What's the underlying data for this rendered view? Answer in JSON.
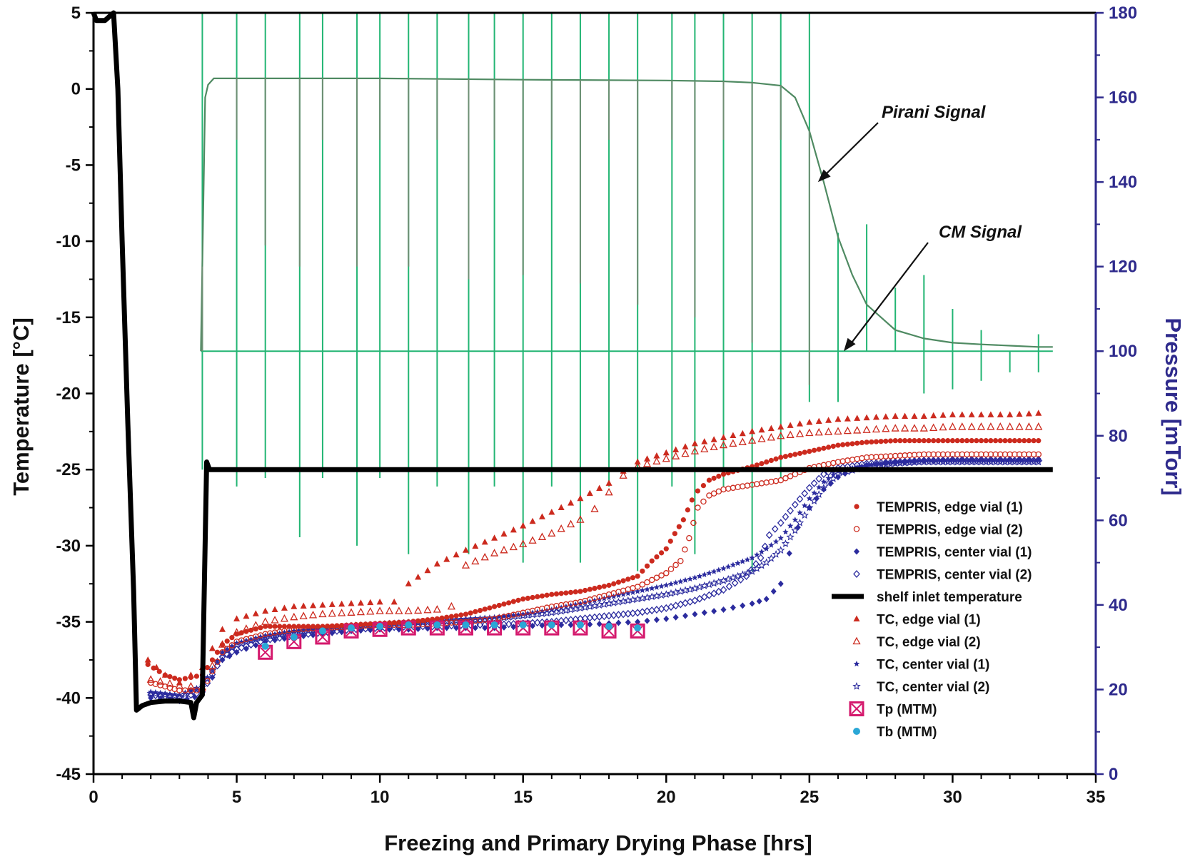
{
  "chart_data": {
    "type": "scatter",
    "title": "",
    "xlabel": "Freezing and Primary Drying Phase [hrs]",
    "ylabel_left": "Temperature [°C]",
    "ylabel_right": "Pressure [mTorr]",
    "xlim": [
      0,
      35
    ],
    "ylim_left": [
      -45,
      5
    ],
    "ylim_right": [
      0,
      180
    ],
    "xticks": [
      "0",
      "5",
      "10",
      "15",
      "20",
      "25",
      "30",
      "35"
    ],
    "yticks_left": [
      "5",
      "0",
      "-5",
      "-10",
      "-15",
      "-20",
      "-25",
      "-30",
      "-35",
      "-40",
      "-45"
    ],
    "yticks_right": [
      "180",
      "160",
      "140",
      "120",
      "100",
      "80",
      "60",
      "40",
      "20",
      "0"
    ],
    "legend_position": "right",
    "annotations": [
      {
        "text": "Pirani Signal",
        "x": 25.3,
        "y_pressure": 140
      },
      {
        "text": "CM Signal",
        "x": 26.2,
        "y_pressure": 100
      }
    ],
    "colors": {
      "axis_left": "#000000",
      "axis_right": "#2e2a8c",
      "pirani": "#4f8a62",
      "cm": "#22b573",
      "red": "#cc2a1e",
      "blue": "#2b2b9e",
      "shelf": "#000000",
      "tp": "#d4186c",
      "tb": "#2aa7d6"
    },
    "series": [
      {
        "name": "Pirani Signal",
        "axis": "right",
        "style": "line",
        "color": "#4f8a62",
        "x": [
          3.75,
          3.9,
          4.0,
          4.2,
          5,
          10,
          15,
          20,
          22,
          23,
          24,
          24.5,
          25,
          25.5,
          26,
          26.5,
          27,
          28,
          29,
          30,
          31,
          32,
          33,
          33.5
        ],
        "y": [
          100,
          160,
          163,
          164.5,
          164.5,
          164.5,
          164.2,
          164,
          163.8,
          163.5,
          162.8,
          160,
          152,
          140,
          127,
          118,
          111,
          105,
          103,
          102,
          101.6,
          101.3,
          101,
          101
        ],
        "spike_x": [
          3.8,
          5.0,
          6.0,
          7.2,
          8.0,
          9.2,
          10.0,
          11.0,
          12.0,
          13.1,
          14.0,
          15.0,
          16.0,
          17.0,
          18.0,
          19.0,
          20.2,
          21.0,
          22.0,
          23.0,
          24.0,
          25.0
        ],
        "spike_low": [
          100,
          150,
          125,
          120,
          150,
          120,
          150,
          120,
          150,
          117,
          150,
          118,
          150,
          116,
          150,
          111,
          150,
          108,
          150,
          102,
          150,
          92
        ]
      },
      {
        "name": "CM Signal",
        "axis": "right",
        "style": "line",
        "color": "#22b573",
        "x": [
          3.75,
          33.5
        ],
        "y": [
          100,
          100
        ],
        "spike_x": [
          3.8,
          5.0,
          6.0,
          7.2,
          8.0,
          9.2,
          10.0,
          11.0,
          12.0,
          13.1,
          14.0,
          15.0,
          16.0,
          17.0,
          18.0,
          19.0,
          20.2,
          21.0,
          22.0,
          23.0,
          24.0,
          25.0,
          26.0,
          27.0,
          28.0,
          29.0,
          30.0,
          31.0,
          32.0,
          33.0
        ],
        "spike_high": [
          180,
          180,
          180,
          180,
          180,
          180,
          180,
          180,
          180,
          180,
          180,
          180,
          180,
          180,
          180,
          180,
          180,
          180,
          180,
          180,
          180,
          180,
          128,
          130,
          115,
          118,
          110,
          105,
          100,
          104
        ],
        "spike_low": [
          72,
          68,
          70,
          56,
          70,
          54,
          70,
          52,
          68,
          52,
          68,
          50,
          68,
          50,
          68,
          48,
          68,
          52,
          68,
          48,
          70,
          88,
          88,
          100,
          100,
          90,
          91,
          93,
          95,
          95
        ]
      },
      {
        "name": "shelf inlet temperature",
        "axis": "left",
        "style": "thick-line",
        "color": "#000000",
        "x": [
          0.0,
          0.1,
          0.4,
          0.7,
          0.85,
          1.0,
          1.2,
          1.4,
          1.5,
          1.7,
          2.0,
          2.5,
          3.0,
          3.4,
          3.5,
          3.6,
          3.8,
          3.95,
          4.05,
          4.2,
          5,
          10,
          15,
          20,
          25,
          30,
          33.5
        ],
        "y": [
          5,
          4.5,
          4.5,
          5,
          0,
          -10,
          -22,
          -33,
          -40.8,
          -40.5,
          -40.3,
          -40.2,
          -40.2,
          -40.3,
          -41.3,
          -40.3,
          -39.8,
          -24.5,
          -25,
          -25,
          -25,
          -25,
          -25,
          -25,
          -25,
          -25,
          -25
        ]
      },
      {
        "name": "TEMPRIS, edge vial (1)",
        "axis": "left",
        "style": "filled-circle",
        "color": "#cc2a1e",
        "x": [
          1.9,
          2.5,
          3.0,
          3.8,
          4.5,
          5,
          6,
          7,
          8,
          9,
          10,
          11,
          12,
          13,
          14,
          15,
          16,
          17,
          18,
          19,
          19.5,
          20,
          20.3,
          20.6,
          20.9,
          21.1,
          21.5,
          22,
          23,
          24,
          25,
          26,
          27,
          28,
          29,
          30,
          31,
          32,
          33
        ],
        "y": [
          -37.8,
          -38.5,
          -38.8,
          -38.5,
          -36.5,
          -35.8,
          -35.3,
          -35.3,
          -35.3,
          -35.2,
          -35.1,
          -35,
          -34.8,
          -34.5,
          -34,
          -33.5,
          -33.2,
          -33,
          -32.6,
          -32,
          -31,
          -30.2,
          -29.2,
          -28.3,
          -27,
          -26.4,
          -25.7,
          -25.3,
          -24.8,
          -24.2,
          -23.8,
          -23.4,
          -23.2,
          -23.1,
          -23.1,
          -23.1,
          -23.1,
          -23.1,
          -23.1
        ]
      },
      {
        "name": "TEMPRIS, edge vial (2)",
        "axis": "left",
        "style": "open-circle",
        "color": "#cc2a1e",
        "x": [
          2,
          3,
          3.8,
          4.5,
          5,
          6,
          7,
          8,
          9,
          10,
          11,
          12,
          13,
          14,
          15,
          16,
          17,
          18,
          19,
          20,
          20.5,
          20.8,
          21.1,
          21.5,
          22,
          23,
          24,
          24.5,
          25,
          26,
          27,
          28,
          29,
          30,
          31,
          32,
          33
        ],
        "y": [
          -39,
          -39.5,
          -39.5,
          -37,
          -36.3,
          -35.8,
          -35.5,
          -35.4,
          -35.3,
          -35.2,
          -35.2,
          -35.1,
          -35,
          -34.8,
          -34.4,
          -34,
          -33.7,
          -33.2,
          -32.7,
          -31.8,
          -31,
          -29.5,
          -27.5,
          -26.7,
          -26.3,
          -26,
          -25.7,
          -25.3,
          -24.9,
          -24.5,
          -24.2,
          -24.1,
          -24,
          -24,
          -24,
          -24,
          -24
        ]
      },
      {
        "name": "TEMPRIS, center vial (1)",
        "axis": "left",
        "style": "filled-diamond",
        "color": "#2b2b9e",
        "x": [
          2,
          3,
          3.8,
          4.5,
          5,
          6,
          7,
          8,
          9,
          10,
          11,
          12,
          13,
          14,
          15,
          16,
          17,
          18,
          19,
          20,
          21,
          22,
          23,
          23.5,
          24,
          24.3,
          24.6,
          25,
          25.5,
          26,
          26.5,
          27,
          28,
          29,
          30,
          31,
          32,
          33
        ],
        "y": [
          -40,
          -40.2,
          -39.8,
          -37.5,
          -37,
          -36.3,
          -36,
          -35.8,
          -35.6,
          -35.5,
          -35.5,
          -35.4,
          -35.4,
          -35.4,
          -35.3,
          -35.2,
          -35.2,
          -35.1,
          -35,
          -34.8,
          -34.5,
          -34.2,
          -33.8,
          -33.5,
          -32.5,
          -30.5,
          -28.8,
          -27.5,
          -26.3,
          -25.5,
          -25,
          -24.7,
          -24.5,
          -24.4,
          -24.3,
          -24.3,
          -24.3,
          -24.3
        ]
      },
      {
        "name": "TEMPRIS, center vial (2)",
        "axis": "left",
        "style": "open-diamond",
        "color": "#2b2b9e",
        "x": [
          2,
          3,
          3.8,
          4.5,
          5,
          6,
          7,
          8,
          9,
          10,
          11,
          12,
          13,
          14,
          15,
          16,
          17,
          18,
          19,
          20,
          21,
          22,
          22.8,
          23.3,
          23.6,
          24,
          24.5,
          25,
          25.5,
          26,
          27,
          28,
          29,
          30,
          31,
          32,
          33
        ],
        "y": [
          -39.8,
          -40,
          -39.6,
          -37.3,
          -36.8,
          -36.2,
          -35.9,
          -35.7,
          -35.5,
          -35.4,
          -35.3,
          -35.3,
          -35.2,
          -35.2,
          -35.1,
          -35,
          -34.8,
          -34.6,
          -34.4,
          -34.1,
          -33.6,
          -32.9,
          -32,
          -30.8,
          -29.3,
          -28.5,
          -27.3,
          -26.2,
          -25.3,
          -24.9,
          -24.6,
          -24.5,
          -24.4,
          -24.4,
          -24.4,
          -24.4,
          -24.4
        ]
      },
      {
        "name": "TC, edge vial (1)",
        "axis": "left",
        "style": "filled-triangle",
        "color": "#cc2a1e",
        "x": [
          1.9,
          2.5,
          3,
          3.8,
          4.5,
          5,
          6,
          7,
          8,
          9,
          10,
          10.5,
          11,
          12,
          13,
          14,
          15,
          16,
          17,
          18,
          18.5,
          19,
          20,
          21,
          22,
          23,
          24,
          25,
          26,
          27,
          28,
          29,
          30,
          31,
          32,
          33
        ],
        "y": [
          -37.5,
          -38.5,
          -39,
          -38,
          -35.5,
          -34.8,
          -34.3,
          -34,
          -33.9,
          -33.8,
          -33.7,
          -33.7,
          -32.5,
          -31.2,
          -30.3,
          -29.5,
          -28.7,
          -27.8,
          -26.9,
          -25.9,
          -25.1,
          -24.5,
          -23.9,
          -23.3,
          -22.9,
          -22.5,
          -22.2,
          -21.9,
          -21.7,
          -21.6,
          -21.5,
          -21.5,
          -21.4,
          -21.4,
          -21.4,
          -21.3
        ]
      },
      {
        "name": "TC, edge vial (2)",
        "axis": "left",
        "style": "open-triangle",
        "color": "#cc2a1e",
        "x": [
          2,
          3,
          3.8,
          4.5,
          5,
          6,
          7,
          8,
          9,
          10,
          11,
          12,
          12.5,
          13,
          14,
          15,
          16,
          17,
          17.5,
          18,
          18.5,
          19,
          20,
          21,
          22,
          23,
          24,
          25,
          26,
          27,
          28,
          29,
          30,
          31,
          32,
          33
        ],
        "y": [
          -38.8,
          -39.2,
          -39.3,
          -36.5,
          -35.7,
          -35,
          -34.7,
          -34.5,
          -34.4,
          -34.3,
          -34.3,
          -34.2,
          -34,
          -31.3,
          -30.5,
          -29.9,
          -29.2,
          -28.3,
          -27.6,
          -26.5,
          -25.4,
          -24.8,
          -24.3,
          -23.8,
          -23.4,
          -23.1,
          -22.8,
          -22.6,
          -22.5,
          -22.4,
          -22.3,
          -22.3,
          -22.2,
          -22.2,
          -22.2,
          -22.2
        ]
      },
      {
        "name": "TC, center vial (1)",
        "axis": "left",
        "style": "star",
        "color": "#2b2b9e",
        "x": [
          2,
          3,
          3.8,
          4.5,
          5,
          6,
          7,
          8,
          9,
          10,
          11,
          12,
          13,
          14,
          15,
          16,
          17,
          18,
          19,
          20,
          21,
          22,
          23,
          23.5,
          24,
          24.5,
          25,
          25.5,
          26,
          27,
          28,
          29,
          30,
          31,
          32,
          33
        ],
        "y": [
          -39.6,
          -39.8,
          -39.2,
          -37,
          -36.4,
          -35.9,
          -35.6,
          -35.4,
          -35.2,
          -35.1,
          -35,
          -34.9,
          -34.8,
          -34.7,
          -34.5,
          -34.2,
          -33.8,
          -33.4,
          -33,
          -32.6,
          -32.1,
          -31.5,
          -30.8,
          -30.2,
          -29.5,
          -28.3,
          -26.9,
          -25.8,
          -25.1,
          -24.7,
          -24.5,
          -24.4,
          -24.4,
          -24.4,
          -24.4,
          -24.4
        ]
      },
      {
        "name": "TC, center vial (2)",
        "axis": "left",
        "style": "open-star",
        "color": "#2b2b9e",
        "x": [
          2,
          3,
          3.8,
          4.5,
          5,
          6,
          7,
          8,
          9,
          10,
          11,
          12,
          13,
          14,
          15,
          16,
          17,
          18,
          19,
          20,
          21,
          22,
          23,
          23.5,
          24,
          24.5,
          25,
          25.5,
          26,
          27,
          28,
          29,
          30,
          31,
          32,
          33
        ],
        "y": [
          -39.7,
          -39.9,
          -39.3,
          -37.1,
          -36.5,
          -36,
          -35.7,
          -35.5,
          -35.3,
          -35.2,
          -35.1,
          -35,
          -34.9,
          -34.8,
          -34.6,
          -34.4,
          -34.1,
          -33.8,
          -33.5,
          -33.2,
          -32.8,
          -32.3,
          -31.7,
          -31.1,
          -30.3,
          -29,
          -27.5,
          -26.2,
          -25.3,
          -24.8,
          -24.6,
          -24.5,
          -24.5,
          -24.5,
          -24.5,
          -24.5
        ]
      },
      {
        "name": "Tp (MTM)",
        "axis": "left",
        "style": "square-x",
        "color": "#d4186c",
        "x": [
          6,
          7,
          8,
          9,
          10,
          11,
          12,
          13,
          14,
          15,
          16,
          17,
          18,
          19
        ],
        "y": [
          -37,
          -36.3,
          -36,
          -35.6,
          -35.5,
          -35.4,
          -35.4,
          -35.4,
          -35.4,
          -35.4,
          -35.4,
          -35.4,
          -35.6,
          -35.6
        ]
      },
      {
        "name": "Tb (MTM)",
        "axis": "left",
        "style": "cyan-dot",
        "color": "#2aa7d6",
        "x": [
          6,
          7,
          8,
          9,
          10,
          11,
          12,
          13,
          14,
          15,
          16,
          17,
          18,
          19
        ],
        "y": [
          -36.6,
          -36,
          -35.6,
          -35.4,
          -35.3,
          -35.2,
          -35.2,
          -35.2,
          -35.2,
          -35.2,
          -35.2,
          -35.2,
          -35.3,
          -35.4
        ]
      }
    ]
  }
}
